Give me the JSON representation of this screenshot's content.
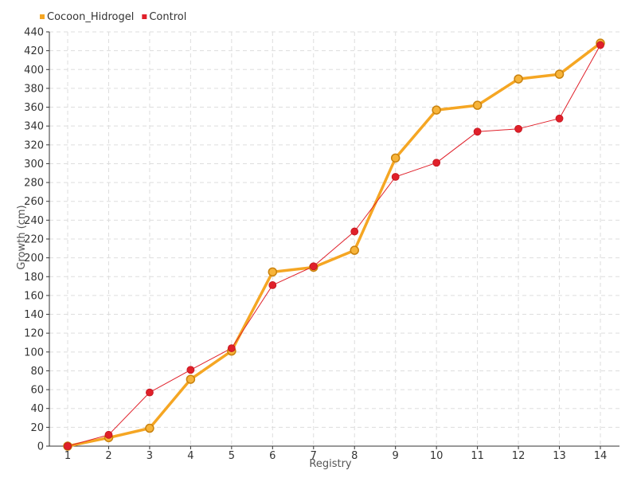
{
  "chart_data": {
    "type": "line",
    "xlabel": "Registry",
    "ylabel": "Growth (cm)",
    "categories": [
      "1",
      "2",
      "3",
      "4",
      "5",
      "6",
      "7",
      "8",
      "9",
      "10",
      "11",
      "12",
      "13",
      "14"
    ],
    "ylim": [
      0,
      440
    ],
    "ytick_step": 20,
    "grid": true,
    "legend_position": "top-left",
    "series": [
      {
        "name": "Cocoon_Hidrogel",
        "color": "#F5A623",
        "values": [
          0,
          9,
          19,
          71,
          101,
          185,
          190,
          208,
          306,
          357,
          362,
          390,
          395,
          428
        ]
      },
      {
        "name": "Control",
        "color": "#E0202A",
        "values": [
          0,
          12,
          57,
          81,
          104,
          171,
          191,
          228,
          286,
          301,
          334,
          337,
          348,
          426
        ]
      }
    ]
  }
}
